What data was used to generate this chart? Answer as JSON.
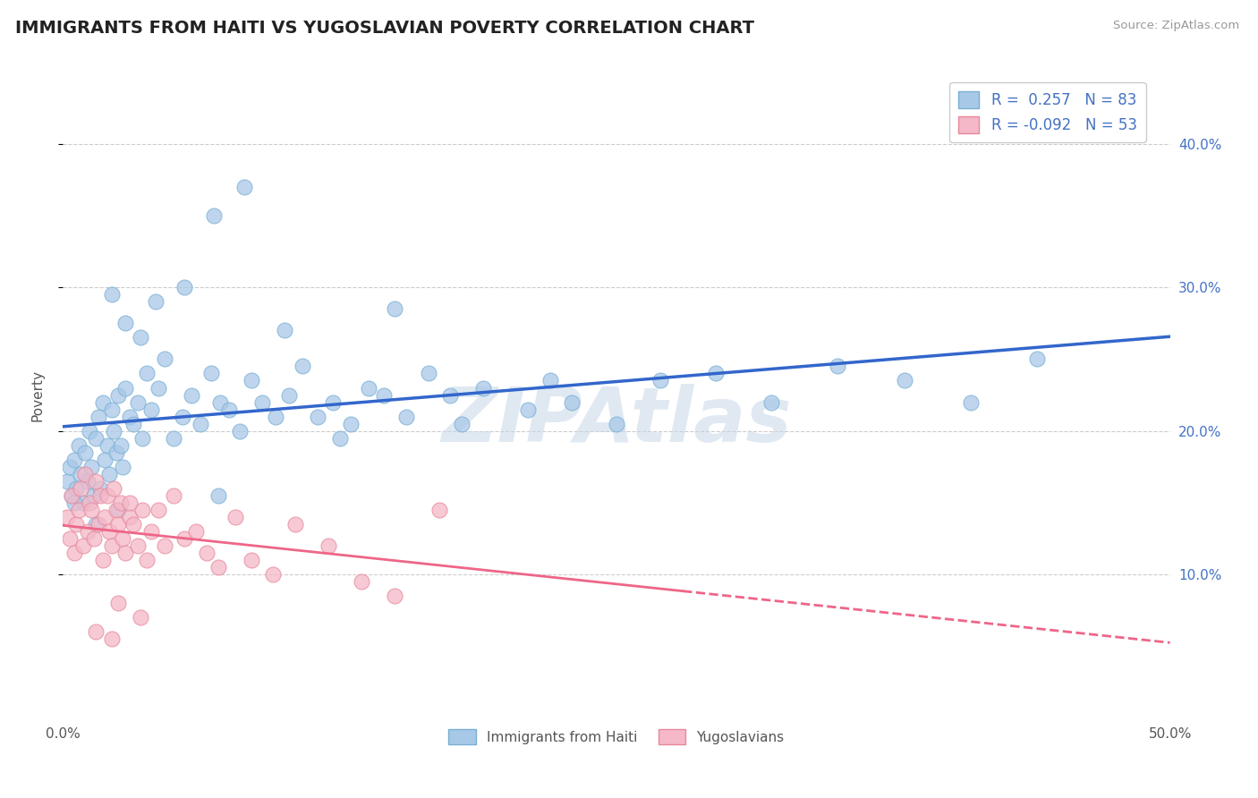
{
  "title": "IMMIGRANTS FROM HAITI VS YUGOSLAVIAN POVERTY CORRELATION CHART",
  "source_text": "Source: ZipAtlas.com",
  "ylabel": "Poverty",
  "xlim": [
    0.0,
    50.0
  ],
  "ylim": [
    0.0,
    45.0
  ],
  "x_ticks": [
    0.0,
    10.0,
    20.0,
    30.0,
    40.0,
    50.0
  ],
  "x_tick_labels": [
    "0.0%",
    "",
    "",
    "",
    "",
    "50.0%"
  ],
  "y_ticks": [
    10.0,
    20.0,
    30.0,
    40.0
  ],
  "haiti_dot_color": "#a8c8e8",
  "haiti_edge_color": "#7aafd4",
  "yugo_dot_color": "#f4b8c8",
  "yugo_edge_color": "#e88899",
  "trend_haiti_color": "#3366cc",
  "trend_yugo_color": "#ee6688",
  "R_haiti": 0.257,
  "N_haiti": 83,
  "R_yugoslavia": -0.092,
  "N_yugoslavia": 53,
  "legend_labels": [
    "Immigrants from Haiti",
    "Yugoslavians"
  ],
  "watermark": "ZIPAtlas",
  "grid_color": "#cccccc",
  "background_color": "#ffffff",
  "haiti_x": [
    0.2,
    0.3,
    0.4,
    0.5,
    0.6,
    0.7,
    0.8,
    0.9,
    1.0,
    1.1,
    1.2,
    1.3,
    1.4,
    1.5,
    1.6,
    1.7,
    1.8,
    1.9,
    2.0,
    2.1,
    2.2,
    2.3,
    2.4,
    2.5,
    2.6,
    2.7,
    2.8,
    3.0,
    3.2,
    3.4,
    3.6,
    3.8,
    4.0,
    4.3,
    4.6,
    5.0,
    5.4,
    5.8,
    6.2,
    6.7,
    7.1,
    7.5,
    8.0,
    8.5,
    9.0,
    9.6,
    10.2,
    10.8,
    11.5,
    12.2,
    13.0,
    13.8,
    14.5,
    15.5,
    16.5,
    17.5,
    19.0,
    21.0,
    23.0,
    25.0,
    27.0,
    29.5,
    32.0,
    35.0,
    38.0,
    41.0,
    44.0,
    2.2,
    2.8,
    3.5,
    4.2,
    5.5,
    6.8,
    8.2,
    10.0,
    12.5,
    15.0,
    18.0,
    22.0,
    7.0,
    0.5,
    1.5,
    2.5
  ],
  "haiti_y": [
    16.5,
    17.5,
    15.5,
    18.0,
    16.0,
    19.0,
    17.0,
    15.0,
    18.5,
    16.5,
    20.0,
    17.5,
    15.5,
    19.5,
    21.0,
    16.0,
    22.0,
    18.0,
    19.0,
    17.0,
    21.5,
    20.0,
    18.5,
    22.5,
    19.0,
    17.5,
    23.0,
    21.0,
    20.5,
    22.0,
    19.5,
    24.0,
    21.5,
    23.0,
    25.0,
    19.5,
    21.0,
    22.5,
    20.5,
    24.0,
    22.0,
    21.5,
    20.0,
    23.5,
    22.0,
    21.0,
    22.5,
    24.5,
    21.0,
    22.0,
    20.5,
    23.0,
    22.5,
    21.0,
    24.0,
    22.5,
    23.0,
    21.5,
    22.0,
    20.5,
    23.5,
    24.0,
    22.0,
    24.5,
    23.5,
    22.0,
    25.0,
    29.5,
    27.5,
    26.5,
    29.0,
    30.0,
    35.0,
    37.0,
    27.0,
    19.5,
    28.5,
    20.5,
    23.5,
    15.5,
    15.0,
    13.5,
    14.5
  ],
  "yugo_x": [
    0.2,
    0.3,
    0.4,
    0.5,
    0.6,
    0.7,
    0.8,
    0.9,
    1.0,
    1.1,
    1.2,
    1.3,
    1.4,
    1.5,
    1.6,
    1.7,
    1.8,
    1.9,
    2.0,
    2.1,
    2.2,
    2.3,
    2.4,
    2.5,
    2.6,
    2.7,
    2.8,
    3.0,
    3.2,
    3.4,
    3.6,
    3.8,
    4.0,
    4.3,
    4.6,
    5.0,
    5.5,
    6.0,
    6.5,
    7.0,
    7.8,
    8.5,
    9.5,
    10.5,
    12.0,
    13.5,
    15.0,
    17.0,
    2.5,
    3.5,
    1.5,
    2.2,
    3.0
  ],
  "yugo_y": [
    14.0,
    12.5,
    15.5,
    11.5,
    13.5,
    14.5,
    16.0,
    12.0,
    17.0,
    13.0,
    15.0,
    14.5,
    12.5,
    16.5,
    13.5,
    15.5,
    11.0,
    14.0,
    15.5,
    13.0,
    12.0,
    16.0,
    14.5,
    13.5,
    15.0,
    12.5,
    11.5,
    14.0,
    13.5,
    12.0,
    14.5,
    11.0,
    13.0,
    14.5,
    12.0,
    15.5,
    12.5,
    13.0,
    11.5,
    10.5,
    14.0,
    11.0,
    10.0,
    13.5,
    12.0,
    9.5,
    8.5,
    14.5,
    8.0,
    7.0,
    6.0,
    5.5,
    15.0
  ]
}
